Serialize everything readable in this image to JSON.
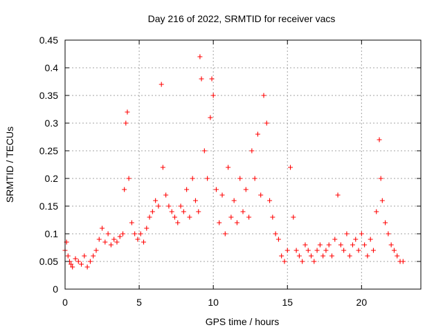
{
  "chart_data": {
    "type": "scatter",
    "title": "Day 216 of 2022, SRMTID for receiver vacs",
    "xlabel": "GPS time / hours",
    "ylabel": "SRMTID / TECUs",
    "xlim": [
      0,
      24
    ],
    "ylim": [
      0,
      0.45
    ],
    "xticks": [
      0,
      5,
      10,
      15,
      20
    ],
    "xtick_labels": [
      "0",
      "5",
      "10",
      "15",
      "20"
    ],
    "yticks": [
      0,
      0.05,
      0.1,
      0.15,
      0.2,
      0.25,
      0.3,
      0.35,
      0.4,
      0.45
    ],
    "ytick_labels": [
      "0",
      "0.05",
      "0.1",
      "0.15",
      "0.2",
      "0.25",
      "0.3",
      "0.35",
      "0.4",
      "0.45"
    ],
    "grid": true,
    "marker": "+",
    "series": [
      {
        "name": "SRMTID",
        "color": "#ff0000",
        "x": [
          0.0,
          0.1,
          0.2,
          0.3,
          0.4,
          0.5,
          0.7,
          0.9,
          1.1,
          1.3,
          1.5,
          1.7,
          1.9,
          2.1,
          2.3,
          2.5,
          2.7,
          2.9,
          3.1,
          3.3,
          3.5,
          3.7,
          3.9,
          4.0,
          4.1,
          4.2,
          4.3,
          4.5,
          4.7,
          4.9,
          5.1,
          5.3,
          5.5,
          5.7,
          5.9,
          6.1,
          6.3,
          6.5,
          6.6,
          6.8,
          7.0,
          7.2,
          7.4,
          7.6,
          7.8,
          8.0,
          8.2,
          8.4,
          8.6,
          8.8,
          9.0,
          9.1,
          9.2,
          9.4,
          9.6,
          9.8,
          9.9,
          10.0,
          10.2,
          10.4,
          10.6,
          10.8,
          11.0,
          11.2,
          11.4,
          11.6,
          11.8,
          12.0,
          12.2,
          12.4,
          12.6,
          12.8,
          13.0,
          13.2,
          13.4,
          13.6,
          13.8,
          14.0,
          14.2,
          14.4,
          14.6,
          14.8,
          15.0,
          15.2,
          15.4,
          15.6,
          15.8,
          16.0,
          16.2,
          16.4,
          16.6,
          16.8,
          17.0,
          17.2,
          17.4,
          17.6,
          17.8,
          18.0,
          18.2,
          18.4,
          18.6,
          18.8,
          19.0,
          19.2,
          19.4,
          19.6,
          19.8,
          20.0,
          20.2,
          20.4,
          20.6,
          20.8,
          21.0,
          21.2,
          21.3,
          21.4,
          21.6,
          21.8,
          22.0,
          22.2,
          22.4,
          22.6,
          22.8
        ],
        "y": [
          0.07,
          0.085,
          0.06,
          0.05,
          0.045,
          0.04,
          0.055,
          0.05,
          0.045,
          0.06,
          0.04,
          0.05,
          0.06,
          0.07,
          0.09,
          0.11,
          0.085,
          0.1,
          0.08,
          0.09,
          0.085,
          0.095,
          0.1,
          0.18,
          0.3,
          0.32,
          0.2,
          0.12,
          0.1,
          0.09,
          0.1,
          0.085,
          0.11,
          0.13,
          0.14,
          0.16,
          0.15,
          0.37,
          0.22,
          0.17,
          0.15,
          0.14,
          0.13,
          0.12,
          0.15,
          0.14,
          0.18,
          0.13,
          0.2,
          0.16,
          0.14,
          0.42,
          0.38,
          0.25,
          0.2,
          0.31,
          0.38,
          0.35,
          0.18,
          0.12,
          0.17,
          0.1,
          0.22,
          0.13,
          0.16,
          0.12,
          0.2,
          0.14,
          0.18,
          0.13,
          0.25,
          0.2,
          0.28,
          0.17,
          0.35,
          0.3,
          0.16,
          0.13,
          0.1,
          0.09,
          0.06,
          0.05,
          0.07,
          0.22,
          0.13,
          0.07,
          0.06,
          0.05,
          0.08,
          0.07,
          0.06,
          0.05,
          0.07,
          0.08,
          0.06,
          0.07,
          0.08,
          0.06,
          0.09,
          0.17,
          0.08,
          0.07,
          0.1,
          0.06,
          0.08,
          0.09,
          0.07,
          0.1,
          0.08,
          0.06,
          0.09,
          0.07,
          0.14,
          0.27,
          0.2,
          0.16,
          0.12,
          0.1,
          0.08,
          0.07,
          0.06,
          0.05,
          0.05
        ]
      }
    ]
  }
}
